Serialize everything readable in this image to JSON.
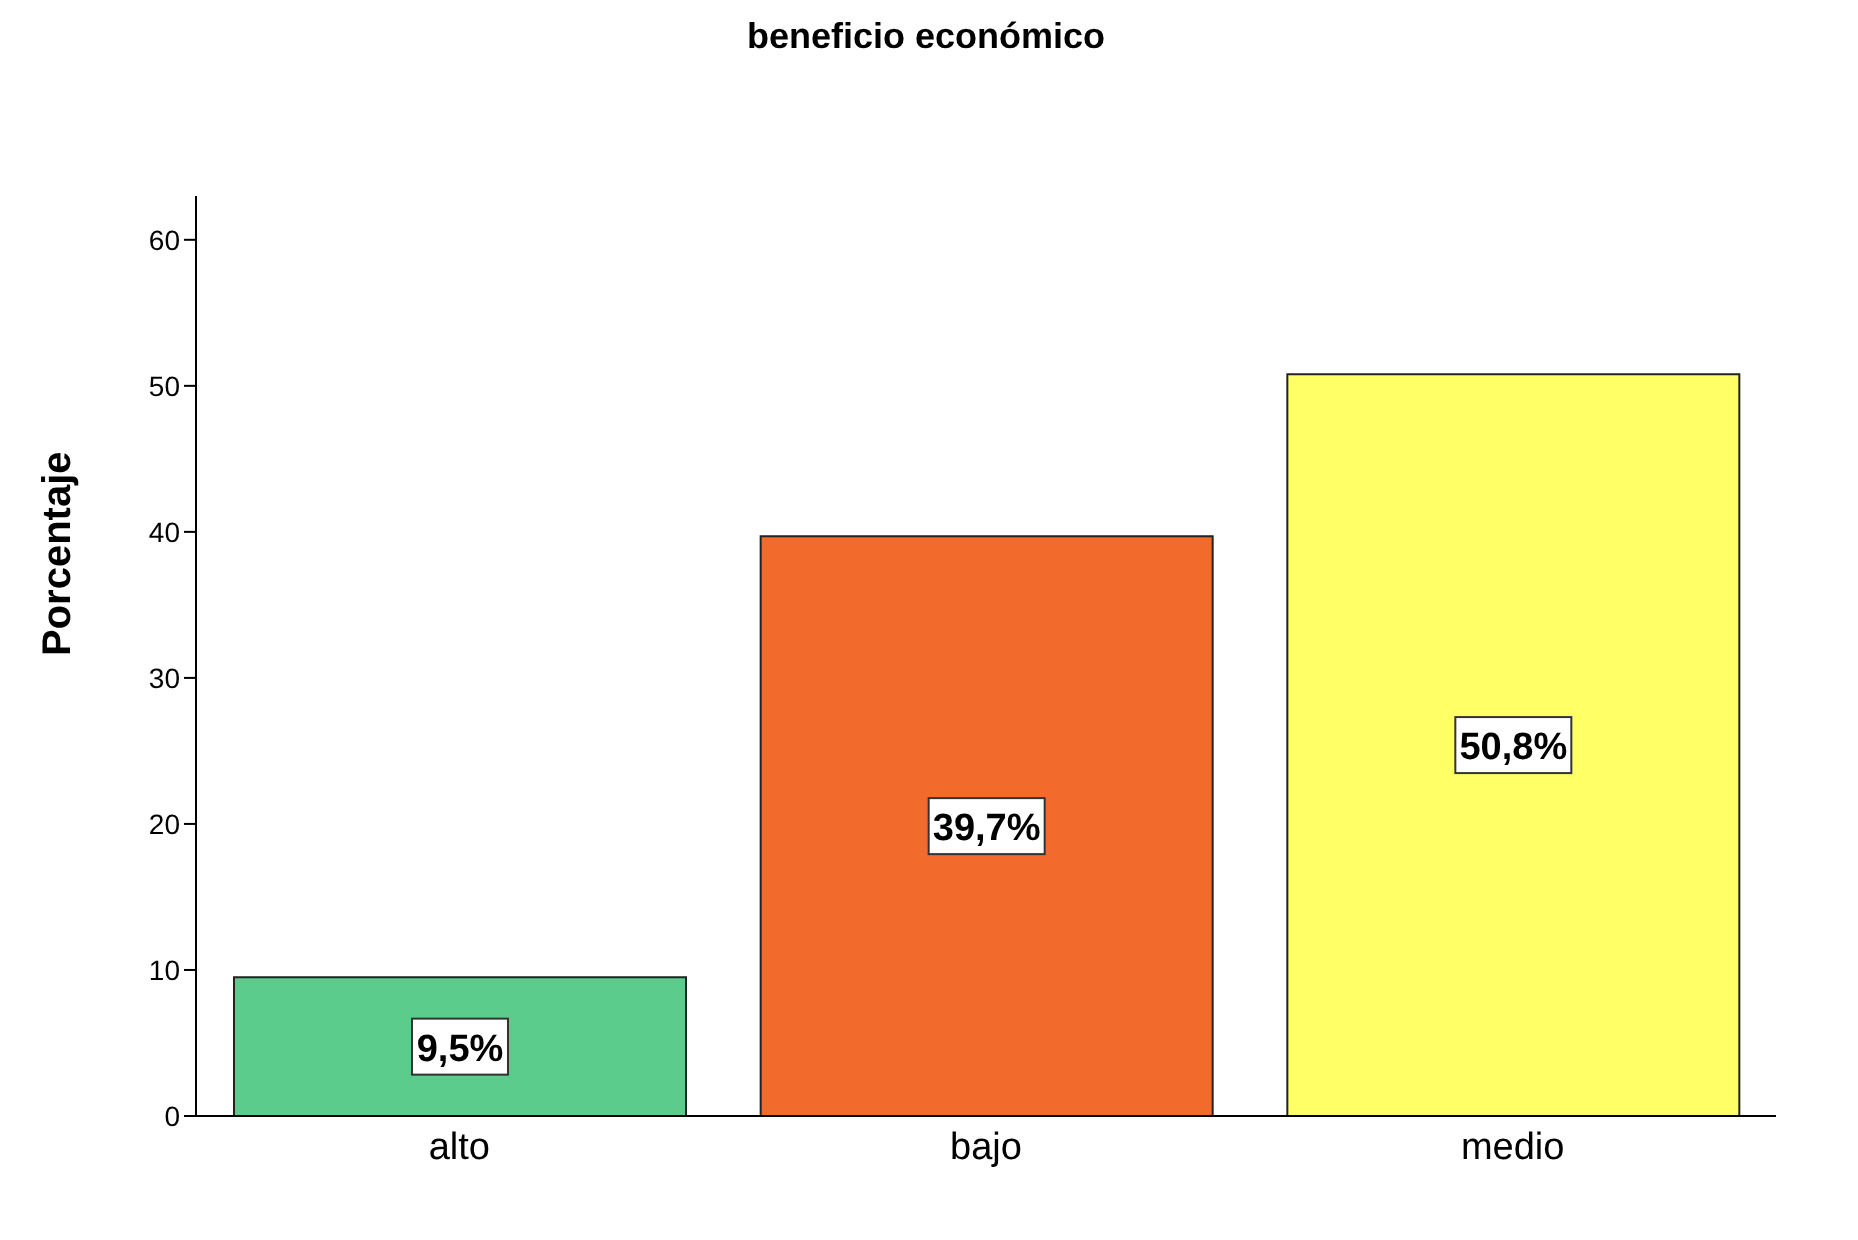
{
  "chart_data": {
    "type": "bar",
    "title": "beneficio económico",
    "ylabel": "Porcentaje",
    "categories": [
      "alto",
      "bajo",
      "medio"
    ],
    "values": [
      9.5,
      39.7,
      50.8
    ],
    "colors": [
      "#5ccc8c",
      "#f26a2c",
      "#ffff66"
    ],
    "value_labels": [
      "9,5%",
      "39,7%",
      "50,8%"
    ],
    "ylim": [
      0,
      63
    ],
    "yticks": [
      0,
      10,
      20,
      30,
      40,
      50,
      60
    ],
    "grid": false,
    "legend": false
  }
}
